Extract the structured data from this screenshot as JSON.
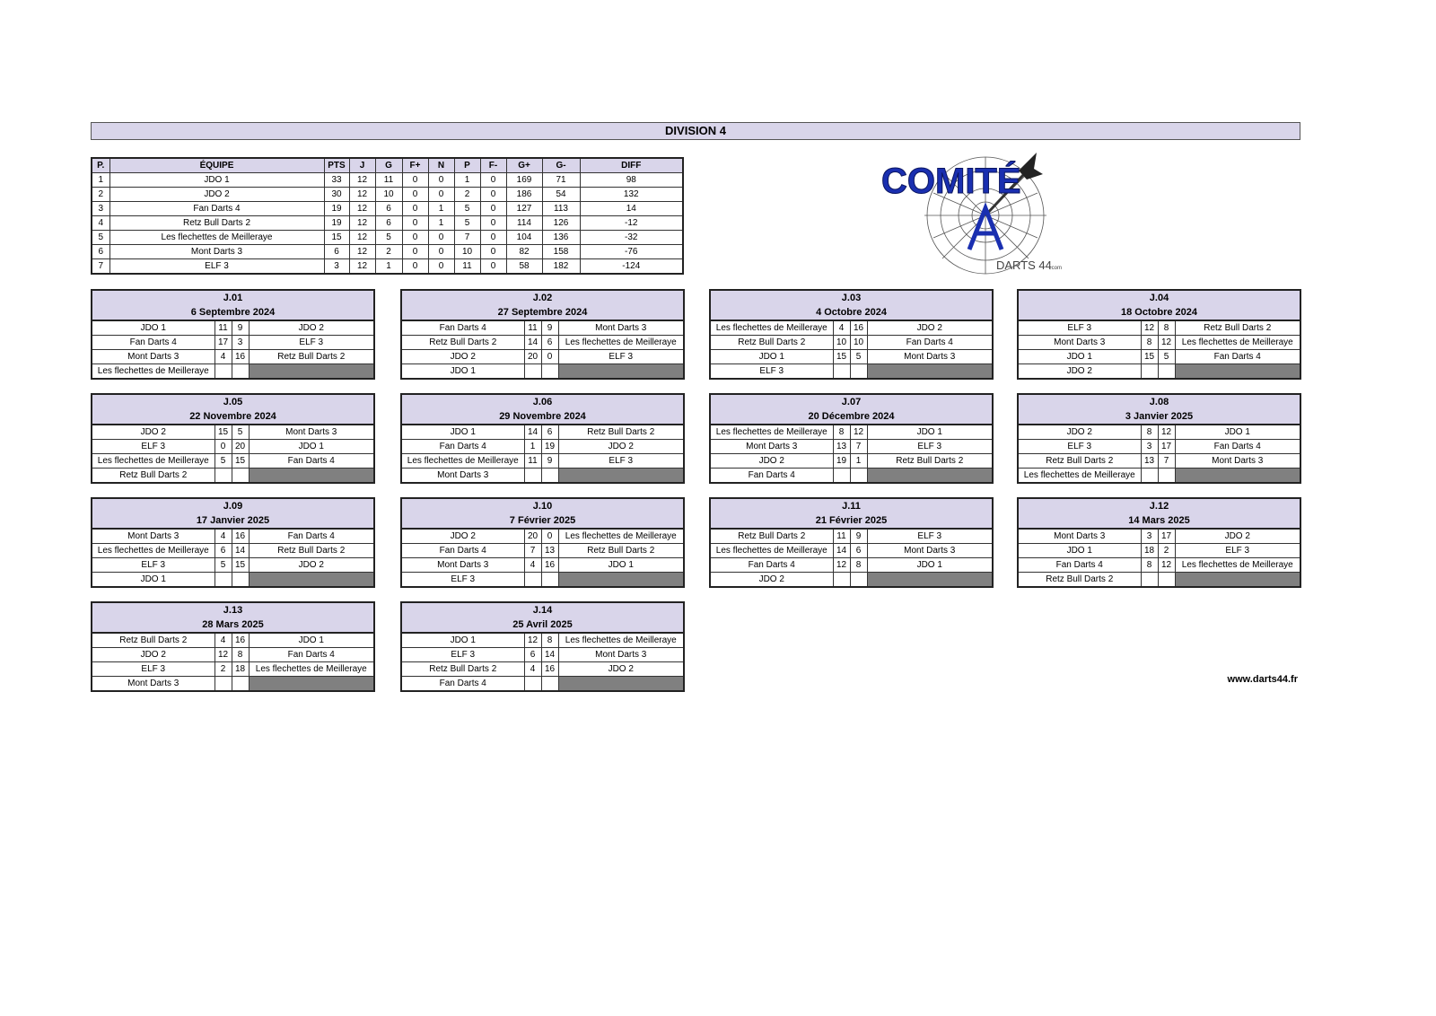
{
  "title": "DIVISION 4",
  "standings": {
    "headers": [
      "P.",
      "ÉQUIPE",
      "PTS",
      "J",
      "G",
      "F+",
      "N",
      "P",
      "F-",
      "G+",
      "G-",
      "DIFF"
    ],
    "rows": [
      [
        "1",
        "JDO 1",
        "33",
        "12",
        "11",
        "0",
        "0",
        "1",
        "0",
        "169",
        "71",
        "98"
      ],
      [
        "2",
        "JDO 2",
        "30",
        "12",
        "10",
        "0",
        "0",
        "2",
        "0",
        "186",
        "54",
        "132"
      ],
      [
        "3",
        "Fan Darts 4",
        "19",
        "12",
        "6",
        "0",
        "1",
        "5",
        "0",
        "127",
        "113",
        "14"
      ],
      [
        "4",
        "Retz Bull Darts 2",
        "19",
        "12",
        "6",
        "0",
        "1",
        "5",
        "0",
        "114",
        "126",
        "-12"
      ],
      [
        "5",
        "Les flechettes de Meilleraye",
        "15",
        "12",
        "5",
        "0",
        "0",
        "7",
        "0",
        "104",
        "136",
        "-32"
      ],
      [
        "6",
        "Mont Darts 3",
        "6",
        "12",
        "2",
        "0",
        "0",
        "10",
        "0",
        "82",
        "158",
        "-76"
      ],
      [
        "7",
        "ELF 3",
        "3",
        "12",
        "1",
        "0",
        "0",
        "11",
        "0",
        "58",
        "182",
        "-124"
      ]
    ]
  },
  "logo": {
    "text": "COMITÉ",
    "subtext": "DARTS 44",
    "suffix": ".com"
  },
  "rounds": [
    {
      "label": "J.01",
      "date": "6 Septembre 2024",
      "matches": [
        [
          "JDO 1",
          "11",
          "9",
          "JDO 2"
        ],
        [
          "Fan Darts 4",
          "17",
          "3",
          "ELF 3"
        ],
        [
          "Mont Darts 3",
          "4",
          "16",
          "Retz Bull Darts 2"
        ]
      ],
      "bye": "Les flechettes de Meilleraye"
    },
    {
      "label": "J.02",
      "date": "27 Septembre 2024",
      "matches": [
        [
          "Fan Darts 4",
          "11",
          "9",
          "Mont Darts 3"
        ],
        [
          "Retz Bull Darts 2",
          "14",
          "6",
          "Les flechettes de Meilleraye"
        ],
        [
          "JDO 2",
          "20",
          "0",
          "ELF 3"
        ]
      ],
      "bye": "JDO 1"
    },
    {
      "label": "J.03",
      "date": "4 Octobre 2024",
      "matches": [
        [
          "Les flechettes de Meilleraye",
          "4",
          "16",
          "JDO 2"
        ],
        [
          "Retz Bull Darts 2",
          "10",
          "10",
          "Fan Darts 4"
        ],
        [
          "JDO 1",
          "15",
          "5",
          "Mont Darts 3"
        ]
      ],
      "bye": "ELF 3"
    },
    {
      "label": "J.04",
      "date": "18 Octobre 2024",
      "matches": [
        [
          "ELF 3",
          "12",
          "8",
          "Retz Bull Darts 2"
        ],
        [
          "Mont Darts 3",
          "8",
          "12",
          "Les flechettes de Meilleraye"
        ],
        [
          "JDO 1",
          "15",
          "5",
          "Fan Darts 4"
        ]
      ],
      "bye": "JDO 2"
    },
    {
      "label": "J.05",
      "date": "22 Novembre 2024",
      "matches": [
        [
          "JDO 2",
          "15",
          "5",
          "Mont Darts 3"
        ],
        [
          "ELF 3",
          "0",
          "20",
          "JDO 1"
        ],
        [
          "Les flechettes de Meilleraye",
          "5",
          "15",
          "Fan Darts 4"
        ]
      ],
      "bye": "Retz Bull Darts 2"
    },
    {
      "label": "J.06",
      "date": "29 Novembre 2024",
      "matches": [
        [
          "JDO 1",
          "14",
          "6",
          "Retz Bull Darts 2"
        ],
        [
          "Fan Darts 4",
          "1",
          "19",
          "JDO 2"
        ],
        [
          "Les flechettes de Meilleraye",
          "11",
          "9",
          "ELF 3"
        ]
      ],
      "bye": "Mont Darts 3"
    },
    {
      "label": "J.07",
      "date": "20 Décembre 2024",
      "matches": [
        [
          "Les flechettes de Meilleraye",
          "8",
          "12",
          "JDO 1"
        ],
        [
          "Mont Darts 3",
          "13",
          "7",
          "ELF 3"
        ],
        [
          "JDO 2",
          "19",
          "1",
          "Retz Bull Darts 2"
        ]
      ],
      "bye": "Fan Darts 4"
    },
    {
      "label": "J.08",
      "date": "3 Janvier 2025",
      "matches": [
        [
          "JDO 2",
          "8",
          "12",
          "JDO 1"
        ],
        [
          "ELF 3",
          "3",
          "17",
          "Fan Darts 4"
        ],
        [
          "Retz Bull Darts 2",
          "13",
          "7",
          "Mont Darts 3"
        ]
      ],
      "bye": "Les flechettes de Meilleraye"
    },
    {
      "label": "J.09",
      "date": "17 Janvier 2025",
      "matches": [
        [
          "Mont Darts 3",
          "4",
          "16",
          "Fan Darts 4"
        ],
        [
          "Les flechettes de Meilleraye",
          "6",
          "14",
          "Retz Bull Darts 2"
        ],
        [
          "ELF 3",
          "5",
          "15",
          "JDO 2"
        ]
      ],
      "bye": "JDO 1"
    },
    {
      "label": "J.10",
      "date": "7 Février 2025",
      "matches": [
        [
          "JDO 2",
          "20",
          "0",
          "Les flechettes de Meilleraye"
        ],
        [
          "Fan Darts 4",
          "7",
          "13",
          "Retz Bull Darts 2"
        ],
        [
          "Mont Darts 3",
          "4",
          "16",
          "JDO 1"
        ]
      ],
      "bye": "ELF 3"
    },
    {
      "label": "J.11",
      "date": "21 Février 2025",
      "matches": [
        [
          "Retz Bull Darts 2",
          "11",
          "9",
          "ELF 3"
        ],
        [
          "Les flechettes de Meilleraye",
          "14",
          "6",
          "Mont Darts 3"
        ],
        [
          "Fan Darts 4",
          "12",
          "8",
          "JDO 1"
        ]
      ],
      "bye": "JDO 2"
    },
    {
      "label": "J.12",
      "date": "14 Mars 2025",
      "matches": [
        [
          "Mont Darts 3",
          "3",
          "17",
          "JDO 2"
        ],
        [
          "JDO 1",
          "18",
          "2",
          "ELF 3"
        ],
        [
          "Fan Darts 4",
          "8",
          "12",
          "Les flechettes de Meilleraye"
        ]
      ],
      "bye": "Retz Bull Darts 2"
    },
    {
      "label": "J.13",
      "date": "28 Mars 2025",
      "matches": [
        [
          "Retz Bull Darts 2",
          "4",
          "16",
          "JDO 1"
        ],
        [
          "JDO 2",
          "12",
          "8",
          "Fan Darts 4"
        ],
        [
          "ELF 3",
          "2",
          "18",
          "Les flechettes de Meilleraye"
        ]
      ],
      "bye": "Mont Darts 3"
    },
    {
      "label": "J.14",
      "date": "25 Avril 2025",
      "matches": [
        [
          "JDO 1",
          "12",
          "8",
          "Les flechettes de Meilleraye"
        ],
        [
          "ELF 3",
          "6",
          "14",
          "Mont Darts 3"
        ],
        [
          "Retz Bull Darts 2",
          "4",
          "16",
          "JDO 2"
        ]
      ],
      "bye": "Fan Darts 4"
    }
  ],
  "footer": {
    "website": "www.darts44.fr"
  },
  "colors": {
    "header_bg": "#d9d5ea",
    "bye_cell": "#808080",
    "logo_blue": "#1a2fb0"
  }
}
